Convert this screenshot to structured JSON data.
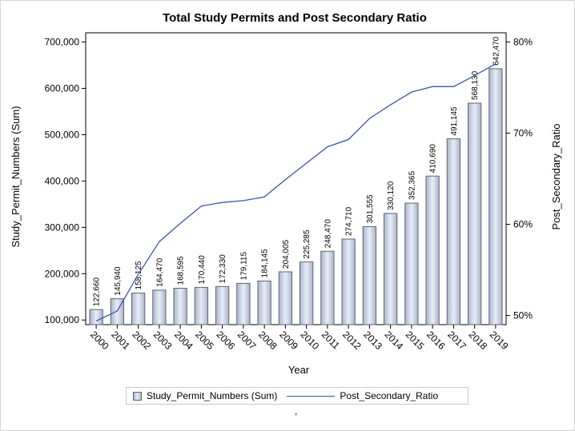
{
  "chart_data": {
    "type": "bar",
    "title": "Total Study Permits and Post Secondary Ratio",
    "xlabel": "Year",
    "ylabel": "Study_Permit_Numbers (Sum)",
    "y2label": "Post_Secondary_Ratio",
    "categories": [
      "2000",
      "2001",
      "2002",
      "2003",
      "2004",
      "2005",
      "2006",
      "2007",
      "2008",
      "2009",
      "2010",
      "2011",
      "2012",
      "2013",
      "2014",
      "2015",
      "2016",
      "2017",
      "2018",
      "2019"
    ],
    "ylim": [
      90000,
      720000
    ],
    "yticks": [
      100000,
      200000,
      300000,
      400000,
      500000,
      600000,
      700000
    ],
    "ytick_labels": [
      "100,000",
      "200,000",
      "300,000",
      "400,000",
      "500,000",
      "600,000",
      "700,000"
    ],
    "y2lim": [
      0.49,
      0.81
    ],
    "y2ticks": [
      0.5,
      0.6,
      0.7,
      0.8
    ],
    "y2tick_labels": [
      "50%",
      "60%",
      "70%",
      "80%"
    ],
    "series": [
      {
        "name": "Study_Permit_Numbers (Sum)",
        "type": "bar",
        "axis": "left",
        "values": [
          122660,
          145940,
          158125,
          164470,
          168595,
          170440,
          172330,
          179115,
          184145,
          204005,
          225285,
          248470,
          274710,
          301555,
          330120,
          352365,
          410690,
          491145,
          568130,
          642470
        ],
        "labels": [
          "122,660",
          "145,940",
          "158,125",
          "164,470",
          "168,595",
          "170,440",
          "172,330",
          "179,115",
          "184,145",
          "204,005",
          "225,285",
          "248,470",
          "274,710",
          "301,555",
          "330,120",
          "352,365",
          "410,690",
          "491,145",
          "568,130",
          "642,470"
        ]
      },
      {
        "name": "Post_Secondary_Ratio",
        "type": "line",
        "axis": "right",
        "values": [
          0.494,
          0.505,
          0.545,
          0.581,
          0.601,
          0.62,
          0.624,
          0.626,
          0.63,
          0.649,
          0.667,
          0.685,
          0.693,
          0.716,
          0.731,
          0.745,
          0.751,
          0.751,
          0.763,
          0.776
        ]
      }
    ],
    "grid": false,
    "legend": "bottom"
  },
  "colors": {
    "bar_edge": "#5e6573",
    "bar_light": "#e8edf6",
    "bar_dark": "#a9b5cc",
    "line": "#3a56a8",
    "axis": "#000000"
  },
  "legend": {
    "bar_label": "Study_Permit_Numbers (Sum)",
    "line_label": "Post_Secondary_Ratio"
  },
  "footnote": ","
}
